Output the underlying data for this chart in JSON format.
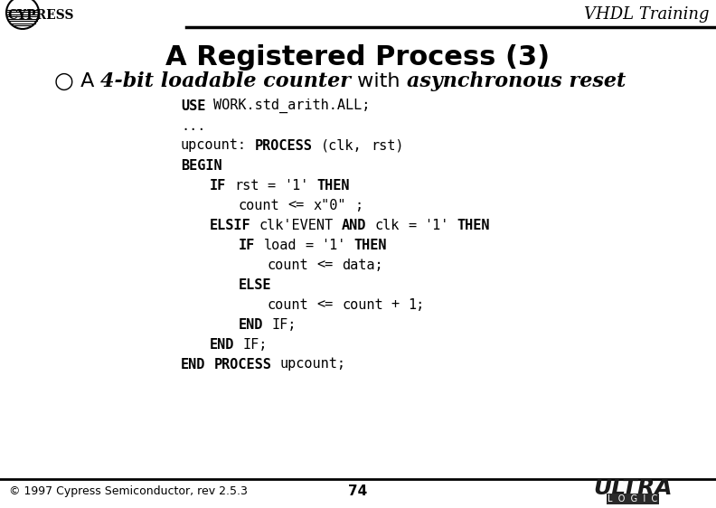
{
  "title": "A Registered Process (3)",
  "subtitle_bullet": "○",
  "subtitle_plain1": " A ",
  "subtitle_italic1": "4-bit loadable counter",
  "subtitle_plain2": " with ",
  "subtitle_italic2": "asynchronous reset",
  "header_right": "VHDL Training",
  "footer_left": "© 1997 Cypress Semiconductor, rev 2.5.3",
  "footer_center": "74",
  "bg_color": "#ffffff",
  "header_bar_color": "#000000",
  "footer_bar_color": "#000000",
  "code_lines": [
    {
      "text": "USE WORK.std_arith.ALL;",
      "indent": 0,
      "bold_words": [
        "USE",
        "WORK",
        "ALL"
      ]
    },
    {
      "text": "...",
      "indent": 0,
      "bold_words": []
    },
    {
      "text": "upcount: PROCESS (clk, rst)",
      "indent": 0,
      "bold_words": [
        "PROCESS"
      ]
    },
    {
      "text": "BEGIN",
      "indent": 0,
      "bold_words": [
        "BEGIN"
      ]
    },
    {
      "text": "IF rst = '1' THEN",
      "indent": 1,
      "bold_words": [
        "IF",
        "THEN"
      ]
    },
    {
      "text": "count <= x\"0\" ;",
      "indent": 2,
      "bold_words": []
    },
    {
      "text": "ELSIF clk'EVENT AND clk = '1' THEN",
      "indent": 1,
      "bold_words": [
        "ELSIF",
        "EVENT",
        "AND",
        "THEN"
      ]
    },
    {
      "text": "IF load = '1' THEN",
      "indent": 2,
      "bold_words": [
        "IF",
        "THEN"
      ]
    },
    {
      "text": "count <= data;",
      "indent": 3,
      "bold_words": []
    },
    {
      "text": "ELSE",
      "indent": 2,
      "bold_words": [
        "ELSE"
      ]
    },
    {
      "text": "count <= count + 1;",
      "indent": 3,
      "bold_words": []
    },
    {
      "text": "END IF;",
      "indent": 2,
      "bold_words": [
        "END",
        "IF"
      ]
    },
    {
      "text": "END IF;",
      "indent": 1,
      "bold_words": [
        "END",
        "IF"
      ]
    },
    {
      "text": "END PROCESS upcount;",
      "indent": 0,
      "bold_words": [
        "END",
        "PROCESS"
      ]
    }
  ],
  "title_fontsize": 22,
  "subtitle_fontsize": 16,
  "code_fontsize": 11,
  "header_fontsize": 13,
  "footer_fontsize": 9
}
